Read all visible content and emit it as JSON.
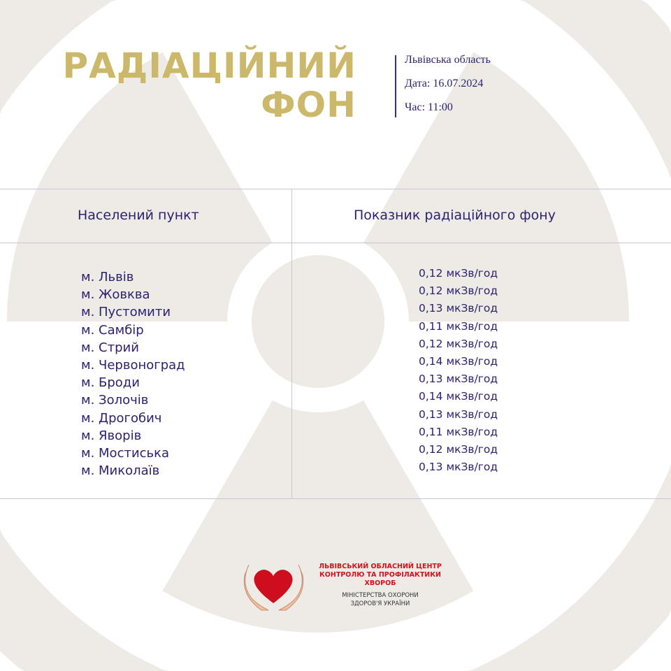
{
  "header": {
    "title_line1": "РАДІАЦІЙНИЙ",
    "title_line2": "ФОН",
    "region": "Львівська область",
    "date": "Дата: 16.07.2024",
    "time": "Час: 11:00"
  },
  "table": {
    "col1_header": "Населений пункт",
    "col2_header": "Показник радіаційного фону",
    "rows": [
      {
        "city": "м. Львів",
        "value": "0,12 мкЗв/год"
      },
      {
        "city": "м. Жовква",
        "value": "0,12 мкЗв/год"
      },
      {
        "city": "м. Пустомити",
        "value": "0,13 мкЗв/год"
      },
      {
        "city": "м. Самбір",
        "value": "0,11 мкЗв/год"
      },
      {
        "city": "м. Стрий",
        "value": "0,12 мкЗв/год"
      },
      {
        "city": "м. Червоноград",
        "value": "0,14 мкЗв/год"
      },
      {
        "city": "м. Броди",
        "value": "0,13 мкЗв/год"
      },
      {
        "city": "м. Золочів",
        "value": "0,14 мкЗв/год"
      },
      {
        "city": "м. Дрогобич",
        "value": "0,13 мкЗв/год"
      },
      {
        "city": "м. Яворів",
        "value": "0,11 мкЗв/год"
      },
      {
        "city": "м. Мостиська",
        "value": "0,12 мкЗв/год"
      },
      {
        "city": "м. Миколаїв",
        "value": "0,13 мкЗв/год"
      }
    ]
  },
  "logo": {
    "org_line1": "ЛЬВІВСЬКИЙ ОБЛАСНИЙ ЦЕНТР",
    "org_line2": "КОНТРОЛЮ ТА ПРОФІЛАКТИКИ",
    "org_line3": "ХВОРОБ",
    "ministry_line1": "МІНІСТЕРСТВА ОХОРОНИ",
    "ministry_line2": "ЗДОРОВ'Я УКРАЇНИ"
  },
  "colors": {
    "background_symbol": "#eeebe6",
    "title": "#cbb86a",
    "text": "#2d2170",
    "logo_red": "#d4121c"
  },
  "background_icon": "radiation-trefoil-icon"
}
